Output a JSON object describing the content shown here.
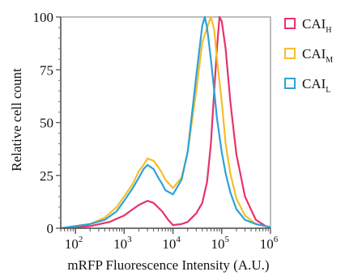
{
  "chart_data": {
    "type": "line",
    "xlabel": "mRFP Fluorescence Intensity (A.U.)",
    "ylabel": "Relative cell count",
    "x_scale": "log",
    "xlim": [
      50,
      1000000
    ],
    "ylim": [
      0,
      100
    ],
    "x_ticks": [
      {
        "value": 100,
        "base": "10",
        "exp": "2"
      },
      {
        "value": 1000,
        "base": "10",
        "exp": "3"
      },
      {
        "value": 10000,
        "base": "10",
        "exp": "4"
      },
      {
        "value": 100000,
        "base": "10",
        "exp": "5"
      },
      {
        "value": 1000000,
        "base": "10",
        "exp": "6"
      }
    ],
    "y_ticks": [
      0,
      25,
      50,
      75,
      100
    ],
    "legend_position": "right",
    "series": [
      {
        "name": "CAI",
        "subscript": "H",
        "color": "#e8326a",
        "points": [
          [
            50,
            0
          ],
          [
            100,
            0.5
          ],
          [
            200,
            1
          ],
          [
            500,
            3
          ],
          [
            1000,
            6
          ],
          [
            1500,
            9
          ],
          [
            2000,
            11
          ],
          [
            3000,
            13
          ],
          [
            4000,
            12
          ],
          [
            6000,
            8
          ],
          [
            8000,
            4
          ],
          [
            10000,
            1.5
          ],
          [
            15000,
            2
          ],
          [
            20000,
            3
          ],
          [
            30000,
            7
          ],
          [
            40000,
            12
          ],
          [
            50000,
            22
          ],
          [
            60000,
            40
          ],
          [
            70000,
            65
          ],
          [
            80000,
            85
          ],
          [
            90000,
            100
          ],
          [
            100000,
            98
          ],
          [
            120000,
            85
          ],
          [
            150000,
            60
          ],
          [
            200000,
            35
          ],
          [
            300000,
            15
          ],
          [
            500000,
            4
          ],
          [
            800000,
            1
          ],
          [
            1000000,
            0.5
          ]
        ]
      },
      {
        "name": "CAI",
        "subscript": "M",
        "color": "#f5bd2a",
        "points": [
          [
            50,
            0
          ],
          [
            100,
            1
          ],
          [
            200,
            2
          ],
          [
            400,
            5
          ],
          [
            700,
            10
          ],
          [
            1000,
            15
          ],
          [
            1500,
            21
          ],
          [
            2000,
            27
          ],
          [
            2500,
            30
          ],
          [
            3000,
            33
          ],
          [
            4000,
            32
          ],
          [
            5000,
            29
          ],
          [
            6000,
            26
          ],
          [
            7000,
            23
          ],
          [
            10000,
            19
          ],
          [
            15000,
            24
          ],
          [
            20000,
            36
          ],
          [
            30000,
            65
          ],
          [
            40000,
            88
          ],
          [
            50000,
            95
          ],
          [
            60000,
            100
          ],
          [
            70000,
            94
          ],
          [
            80000,
            80
          ],
          [
            100000,
            60
          ],
          [
            120000,
            40
          ],
          [
            150000,
            26
          ],
          [
            200000,
            14
          ],
          [
            300000,
            6
          ],
          [
            500000,
            2
          ],
          [
            800000,
            1
          ],
          [
            1000000,
            0.5
          ]
        ]
      },
      {
        "name": "CAI",
        "subscript": "L",
        "color": "#2aa3d8",
        "points": [
          [
            50,
            0
          ],
          [
            100,
            1
          ],
          [
            200,
            2
          ],
          [
            400,
            4
          ],
          [
            700,
            8
          ],
          [
            1000,
            13
          ],
          [
            1500,
            19
          ],
          [
            2000,
            24
          ],
          [
            2500,
            28
          ],
          [
            3000,
            30
          ],
          [
            4000,
            28
          ],
          [
            5000,
            24
          ],
          [
            6000,
            21
          ],
          [
            7000,
            18
          ],
          [
            10000,
            16
          ],
          [
            15000,
            23
          ],
          [
            20000,
            36
          ],
          [
            30000,
            72
          ],
          [
            40000,
            96
          ],
          [
            45000,
            100
          ],
          [
            50000,
            95
          ],
          [
            60000,
            80
          ],
          [
            70000,
            65
          ],
          [
            80000,
            52
          ],
          [
            100000,
            36
          ],
          [
            120000,
            26
          ],
          [
            150000,
            17
          ],
          [
            200000,
            9
          ],
          [
            300000,
            4
          ],
          [
            500000,
            2
          ],
          [
            800000,
            1
          ],
          [
            1000000,
            0.5
          ]
        ]
      }
    ]
  }
}
